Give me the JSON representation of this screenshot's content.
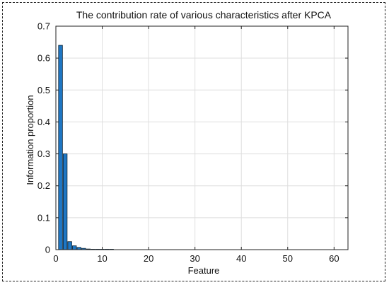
{
  "chart_data": {
    "type": "bar",
    "title": "The contribution rate of various characteristics after KPCA",
    "xlabel": "Feature",
    "ylabel": "Information proportion",
    "xlim": [
      0,
      63
    ],
    "ylim": [
      0,
      0.7
    ],
    "xticks": [
      0,
      10,
      20,
      30,
      40,
      50,
      60
    ],
    "yticks": [
      0,
      0.1,
      0.2,
      0.3,
      0.4,
      0.5,
      0.6,
      0.7
    ],
    "grid": true,
    "bar_color": "#1f77c4",
    "x": [
      1,
      2,
      3,
      4,
      5,
      6,
      7,
      8,
      9,
      10,
      11,
      12
    ],
    "values": [
      0.64,
      0.3,
      0.025,
      0.012,
      0.007,
      0.004,
      0.002,
      0.001,
      0.001,
      0.0008,
      0.0005,
      0.0003
    ]
  }
}
